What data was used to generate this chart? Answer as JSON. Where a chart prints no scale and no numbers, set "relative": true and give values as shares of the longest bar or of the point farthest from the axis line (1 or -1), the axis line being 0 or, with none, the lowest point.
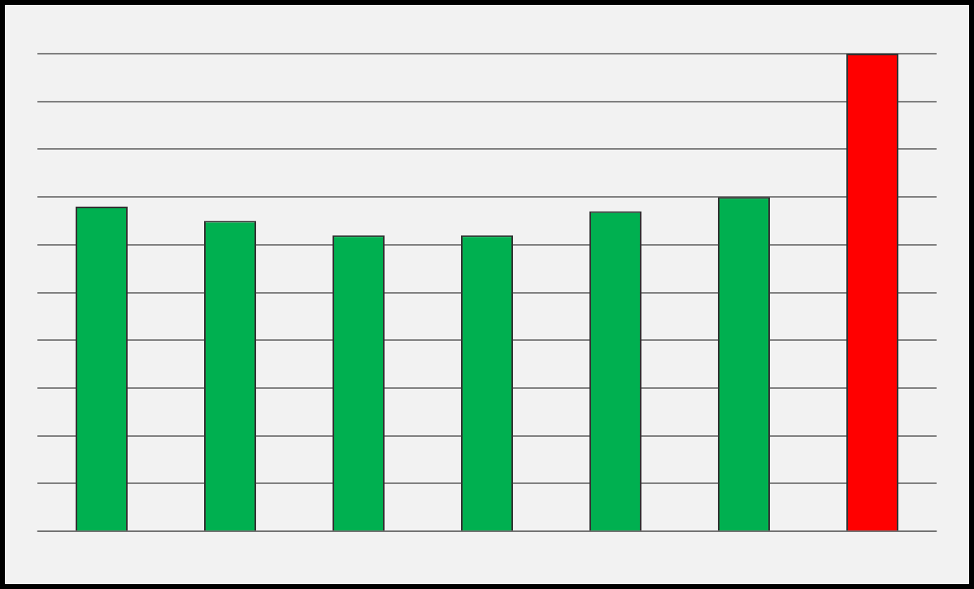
{
  "chart_data": {
    "type": "bar",
    "relative": true,
    "grid": "y",
    "categories": [
      null,
      null,
      null,
      null,
      null,
      null,
      null
    ],
    "values": [
      0.68,
      0.65,
      0.62,
      0.62,
      0.67,
      0.7,
      1
    ],
    "colors": [
      "#00b050",
      "#00b050",
      "#00b050",
      "#00b050",
      "#00b050",
      "#00b050",
      "#ff0000"
    ]
  }
}
